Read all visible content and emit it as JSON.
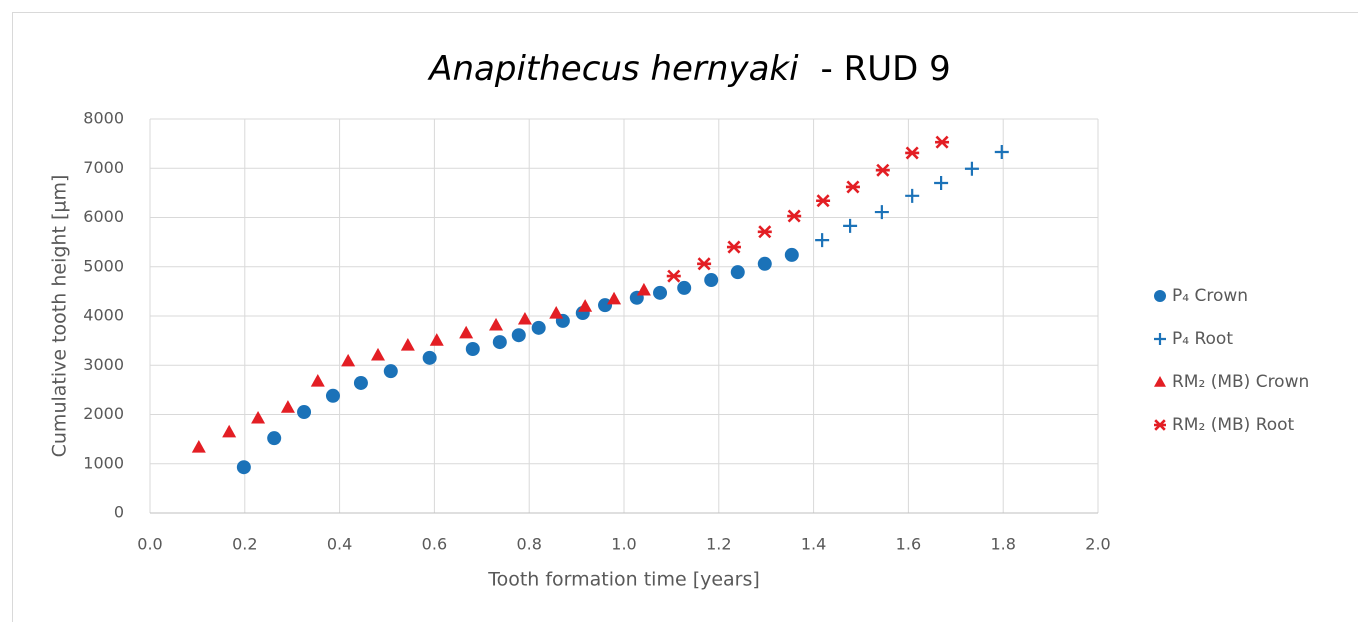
{
  "chart_data": {
    "type": "scatter",
    "title": "Anapithecus hernyaki",
    "title_suffix": "- RUD 9",
    "x_label": "Tooth formation time [years]",
    "y_label": "Cumulative tooth height [µm]",
    "xlim": [
      0,
      2
    ],
    "xticks": [
      {
        "value": 0,
        "label": "0.0"
      },
      0.2,
      0.4,
      0.6,
      0.8,
      {
        "value": 1,
        "label": "1.0"
      },
      1.2,
      1.4,
      1.6,
      1.8,
      {
        "value": 2,
        "label": "2.0"
      }
    ],
    "ylim": [
      0,
      8000
    ],
    "yticks": [
      0,
      1000,
      2000,
      3000,
      4000,
      5000,
      6000,
      7000,
      8000
    ],
    "grid": true,
    "legend": "right",
    "series": [
      {
        "name": "P₄ Crown",
        "color": "#1b72b8",
        "marker": "circle",
        "x": [
          0.198,
          0.262,
          0.325,
          0.386,
          0.445,
          0.508,
          0.59,
          0.681,
          0.738,
          0.778,
          0.82,
          0.871,
          0.913,
          0.96,
          1.027,
          1.076,
          1.127,
          1.184,
          1.24,
          1.297,
          1.354
        ],
        "values": [
          930,
          1520,
          2050,
          2380,
          2640,
          2880,
          3150,
          3330,
          3470,
          3610,
          3760,
          3900,
          4060,
          4220,
          4370,
          4470,
          4570,
          4730,
          4890,
          5060,
          5240
        ]
      },
      {
        "name": "P₄ Root",
        "color": "#1b72b8",
        "marker": "plus",
        "x": [
          1.418,
          1.477,
          1.544,
          1.608,
          1.669,
          1.734,
          1.797
        ],
        "values": [
          5540,
          5830,
          6110,
          6440,
          6700,
          6990,
          7330
        ]
      },
      {
        "name": "RM₂ (MB) Crown",
        "color": "#e31e24",
        "marker": "triangle",
        "x": [
          0.103,
          0.167,
          0.228,
          0.291,
          0.354,
          0.418,
          0.481,
          0.544,
          0.605,
          0.667,
          0.73,
          0.791,
          0.857,
          0.918,
          0.979,
          1.042
        ],
        "values": [
          1340,
          1650,
          1930,
          2150,
          2680,
          3090,
          3210,
          3410,
          3510,
          3660,
          3820,
          3940,
          4060,
          4200,
          4350,
          4530
        ]
      },
      {
        "name": "RM₂ (MB) Root",
        "color": "#e31e24",
        "marker": "asterisk",
        "x": [
          1.105,
          1.169,
          1.232,
          1.297,
          1.359,
          1.42,
          1.483,
          1.546,
          1.608,
          1.671
        ],
        "values": [
          4810,
          5060,
          5400,
          5710,
          6030,
          6340,
          6620,
          6960,
          7310,
          7530
        ]
      }
    ]
  }
}
